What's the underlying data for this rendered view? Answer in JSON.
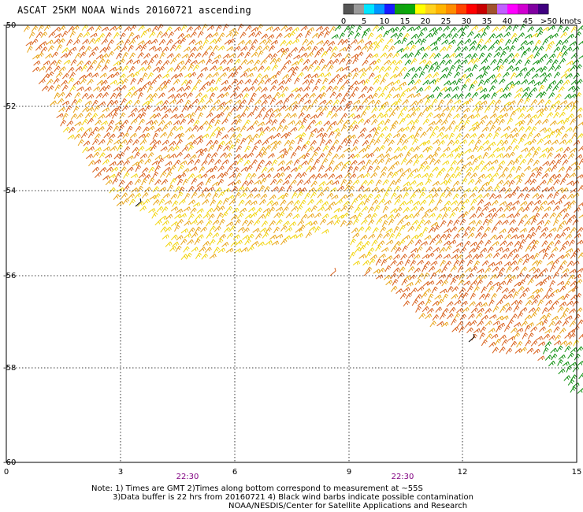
{
  "title": "ASCAT 25KM NOAA Winds 20160721 ascending",
  "legend": {
    "ticks": [
      "0",
      "5",
      "10",
      "15",
      "20",
      "25",
      "30",
      "35",
      "40",
      "45",
      ">50 knots"
    ],
    "colors": [
      "#555555",
      "#9a9a9a",
      "#00e5ff",
      "#0096ff",
      "#1a1aff",
      "#10a010",
      "#0aa80a",
      "#ffff00",
      "#ffd21e",
      "#ffb400",
      "#ff8c00",
      "#ff4400",
      "#ff0000",
      "#c80000",
      "#a0522d",
      "#c060ff",
      "#ff00ff",
      "#d000d0",
      "#8000a0",
      "#400080"
    ]
  },
  "axes": {
    "x_ticks": [
      "0",
      "3",
      "6",
      "9",
      "12",
      "15"
    ],
    "y_ticks": [
      "-50",
      "-52",
      "-54",
      "-56",
      "-58",
      "-60"
    ]
  },
  "time_labels": [
    "22:30",
    "22:30"
  ],
  "notes": [
    "Note: 1) Times are GMT 2)Times along bottom correspond to measurement at ~55S",
    "3)Data buffer is 22 hrs from 20160721 4) Black wind barbs indicate possible contamination",
    "NOAA/NESDIS/Center for Satellite Applications and Research"
  ],
  "colors": {
    "barb_yellow": "#f2d40e",
    "barb_gold": "#e8a418",
    "barb_orange": "#d8601c",
    "barb_green": "#109010",
    "barb_black": "#000000",
    "time_label": "#800080"
  }
}
